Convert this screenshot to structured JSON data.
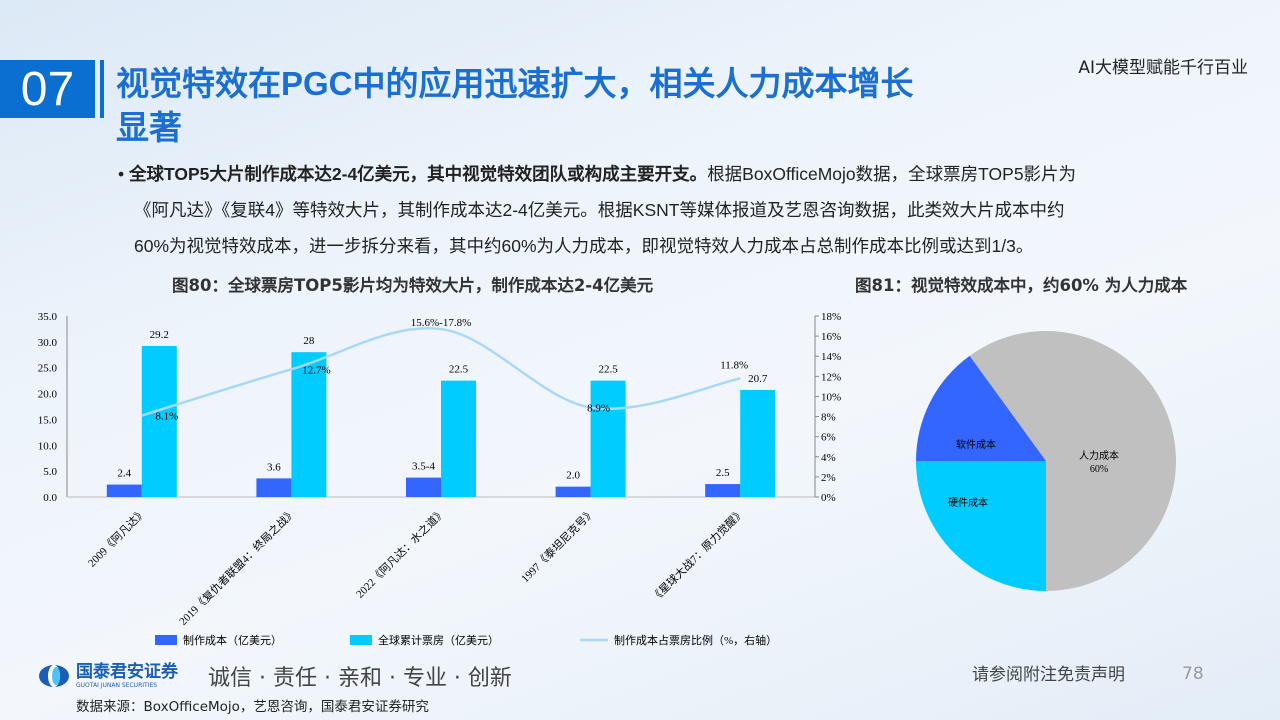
{
  "header": {
    "section_number": "07",
    "title": "视觉特效在PGC中的应用迅速扩大，相关人力成本增长显著",
    "brand": "AI大模型赋能千行百业"
  },
  "body": {
    "bold": "全球TOP5大片制作成本达2-4亿美元，其中视觉特效团队或构成主要开支。",
    "line1": "根据BoxOfficeMojo数据，全球票房TOP5影片为",
    "line2": "《阿凡达》《复联4》等特效大片，其制作成本达2-4亿美元。根据KSNT等媒体报道及艺恩咨询数据，此类效大片成本中约",
    "line3": "60%为视觉特效成本，进一步拆分来看，其中约60%为人力成本，即视觉特效人力成本占总制作成本比例或达到1/3。"
  },
  "chart_data": [
    {
      "type": "bar",
      "title": "图80：全球票房TOP5影片均为特效大片，制作成本达2-4亿美元",
      "categories": [
        "2009《阿凡达》",
        "2019《复仇者联盟4：终局之战》",
        "2022《阿凡达：水之道》",
        "1997《泰坦尼克号》",
        "《星球大战7：原力觉醒》"
      ],
      "series": [
        {
          "name": "制作成本（亿美元）",
          "kind": "bar",
          "color": "#3366ff",
          "values": [
            2.4,
            3.6,
            3.75,
            2.0,
            2.5
          ],
          "labels": [
            "2.4",
            "3.6",
            "3.5-4",
            "2.0",
            "2.5"
          ]
        },
        {
          "name": "全球累计票房（亿美元）",
          "kind": "bar",
          "color": "#00ccff",
          "values": [
            29.2,
            28,
            22.5,
            22.5,
            20.7
          ],
          "labels": [
            "29.2",
            "28",
            "22.5",
            "22.5",
            "20.7"
          ]
        },
        {
          "name": "制作成本占票房比例（%，右轴）",
          "kind": "line",
          "axis": "right",
          "color": "#a8d8f8",
          "values": [
            8.1,
            12.7,
            16.7,
            8.9,
            11.8
          ],
          "labels": [
            "8.1%",
            "12.7%",
            "15.6%-17.8%",
            "8.9%",
            "11.8%"
          ]
        }
      ],
      "ylim": [
        0,
        35
      ],
      "yticks": [
        "0.0",
        "5.0",
        "10.0",
        "15.0",
        "20.0",
        "25.0",
        "30.0",
        "35.0"
      ],
      "y2lim": [
        0,
        18
      ],
      "y2ticks": [
        "0%",
        "2%",
        "4%",
        "6%",
        "8%",
        "10%",
        "12%",
        "14%",
        "16%",
        "18%"
      ],
      "legend": "bottom"
    },
    {
      "type": "pie",
      "title": "图81：视觉特效成本中，约60% 为人力成本",
      "slices": [
        {
          "label": "人力成本",
          "value": 60,
          "text": "60%",
          "color": "#c0c0c0"
        },
        {
          "label": "硬件成本",
          "value": 25,
          "color": "#00ccff"
        },
        {
          "label": "软件成本",
          "value": 15,
          "color": "#3366ff"
        }
      ]
    }
  ],
  "footer": {
    "company": "国泰君安证券",
    "company_en": "GUOTAI JUNAN SECURITIES",
    "slogan": "诚信 · 责任 · 亲和 · 专业 · 创新",
    "disclaimer": "请参阅附注免责声明",
    "page": "78",
    "source": "数据来源：BoxOfficeMojo，艺恩咨询，国泰君安证券研究"
  }
}
